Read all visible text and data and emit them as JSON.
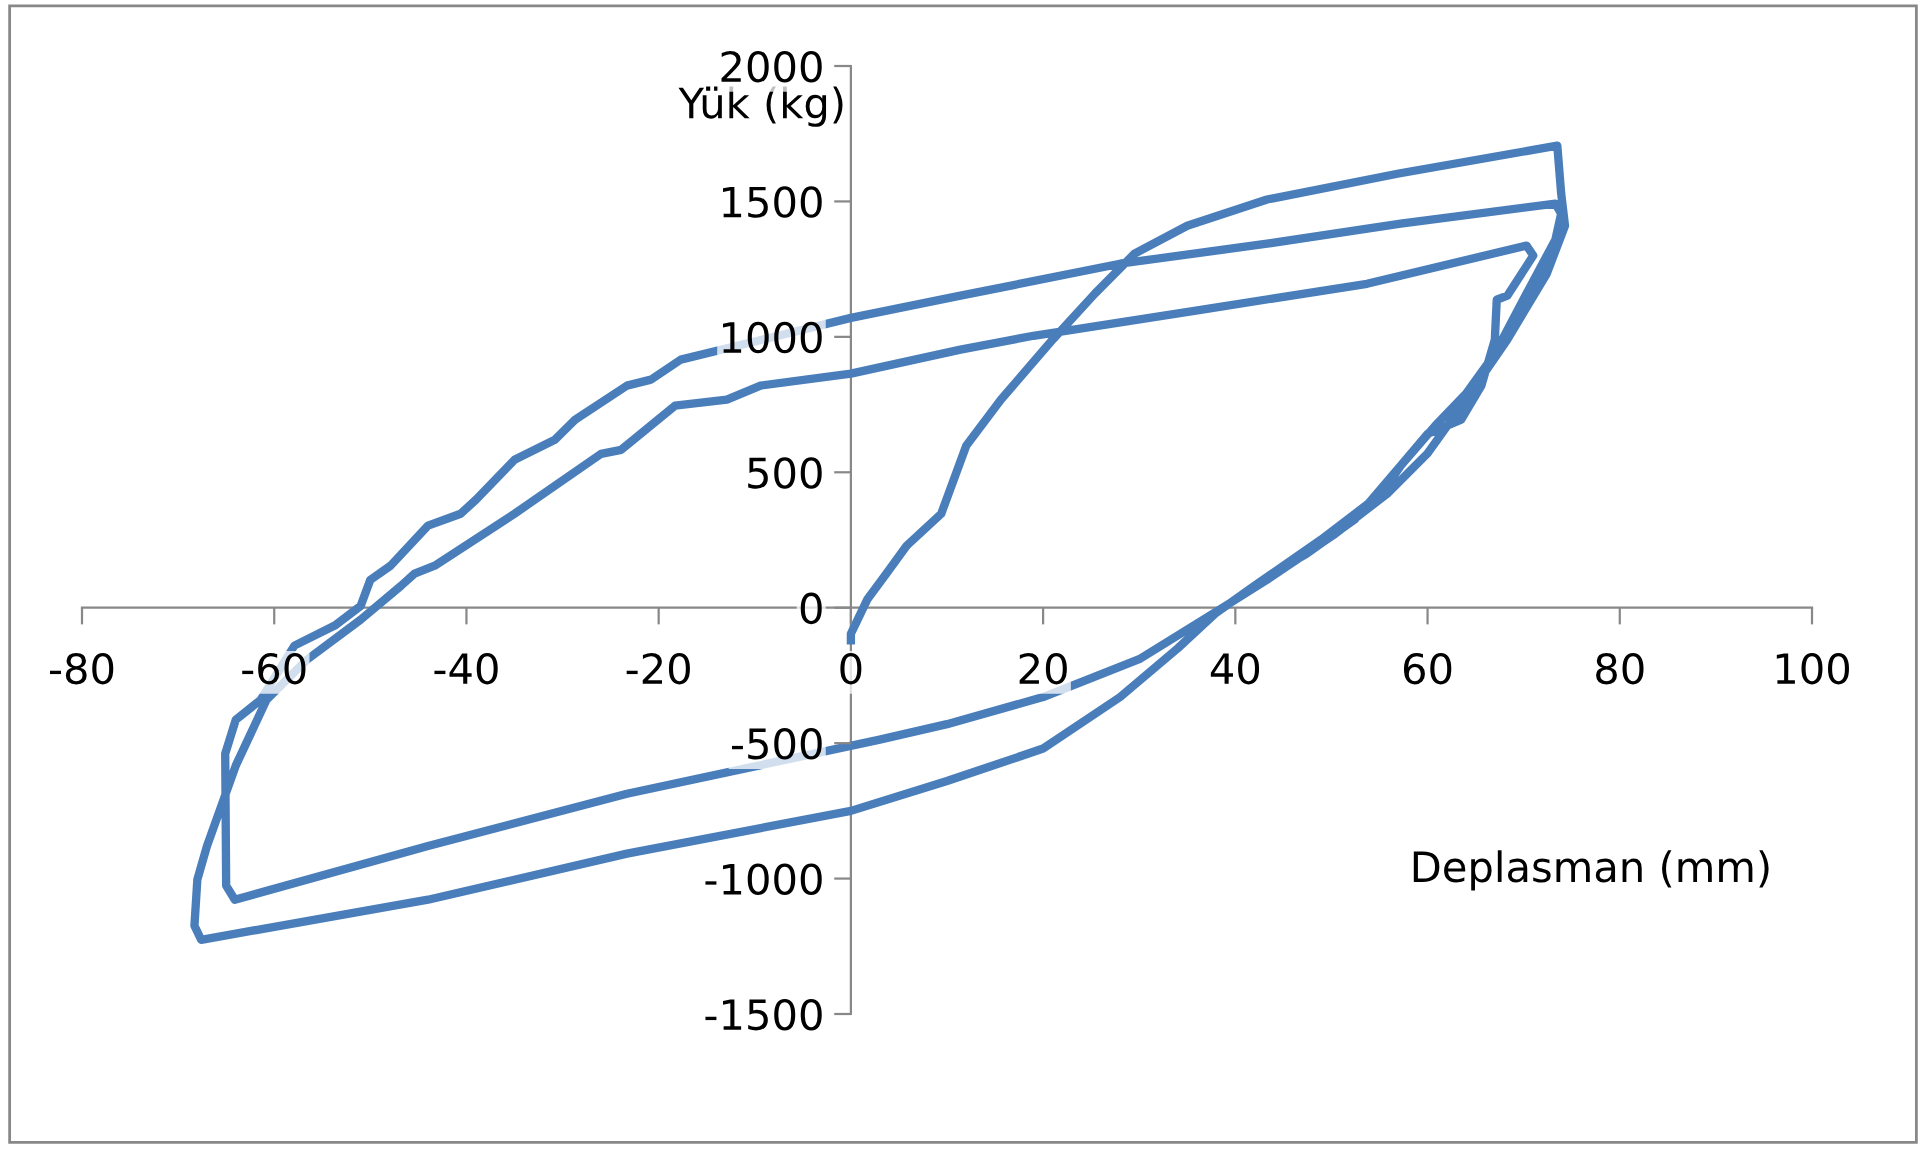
{
  "chart_data": {
    "type": "line",
    "xlabel": "Deplasman (mm)",
    "ylabel": "Yük (kg)",
    "xlim": [
      -80,
      100
    ],
    "ylim": [
      -1500,
      2000
    ],
    "xticks": [
      -80,
      -60,
      -40,
      -20,
      0,
      20,
      40,
      60,
      80,
      100
    ],
    "yticks": [
      -1500,
      -1000,
      -500,
      0,
      500,
      1000,
      1500,
      2000
    ],
    "grid": false,
    "marker": "none",
    "line_style": "solid",
    "series": [
      {
        "color": "#4a7ebb",
        "x": [
          0,
          0,
          1.7,
          3.7,
          5.8,
          9.4,
          12,
          15.6,
          21,
          25.4,
          29.5,
          35,
          43.3,
          57,
          73.5,
          73.9,
          74.3,
          72.4,
          68.3,
          64,
          60,
          55.8,
          50.4,
          43.3,
          39,
          30,
          20,
          10,
          3,
          -23.3,
          -44,
          -64.1,
          -65,
          -65.1,
          -64,
          -61.4,
          -57.9,
          -53.7,
          -51,
          -50,
          -47.9,
          -44,
          -40.6,
          -39,
          -35,
          -30.8,
          -28.7,
          -23.3,
          -20.8,
          -17.7,
          0,
          11.4,
          28,
          43.3,
          57.2,
          73.3,
          73.9,
          73.3,
          70.3,
          67,
          64,
          60.8,
          57.2,
          55.2,
          48.9,
          42,
          37.9,
          34,
          28,
          20,
          10,
          0,
          -23.3,
          -44,
          -67.6,
          -68.3,
          -68,
          -67,
          -64,
          -60.8,
          -56.6,
          -51,
          -46.8,
          -45.4,
          -43.3,
          -35,
          -26,
          -23.9,
          -18.3,
          -12.9,
          -9.4,
          0,
          11.4,
          19,
          36.4,
          53.7,
          70.3,
          71,
          68.3,
          67.2,
          67,
          65.6,
          63.5,
          60,
          57.2,
          52.4,
          47.4,
          45
        ],
        "values": [
          -120,
          -96,
          30,
          126,
          229,
          347,
          598,
          768,
          990,
          1160,
          1307,
          1410,
          1507,
          1603,
          1706,
          1530,
          1410,
          1233,
          990,
          768,
          570,
          421,
          273,
          103,
          7,
          -190,
          -330,
          -430,
          -487,
          -687,
          -880,
          -1078,
          -1026,
          -539,
          -414,
          -340,
          -140,
          -66,
          7,
          103,
          155,
          303,
          347,
          399,
          546,
          620,
          694,
          820,
          842,
          916,
          1070,
          1152,
          1270,
          1344,
          1418,
          1492,
          1455,
          1359,
          1160,
          938,
          790,
          672,
          524,
          421,
          251,
          81,
          -22,
          -150,
          -330,
          -520,
          -640,
          -750,
          -908,
          -1078,
          -1226,
          -1174,
          -1004,
          -880,
          -583,
          -340,
          -192,
          -44,
          81,
          126,
          155,
          347,
          568,
          583,
          746,
          768,
          820,
          864,
          953,
          1004,
          1100,
          1196,
          1337,
          1300,
          1152,
          1137,
          990,
          820,
          694,
          642,
          524,
          325,
          199,
          150
        ]
      }
    ]
  }
}
